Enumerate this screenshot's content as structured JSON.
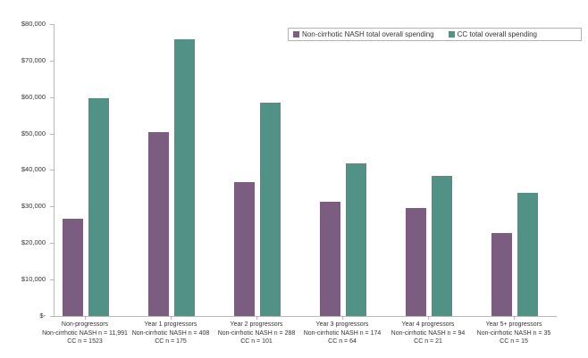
{
  "chart_data": {
    "type": "bar",
    "title": "",
    "xlabel": "",
    "ylabel": "",
    "ylim": [
      0,
      80000
    ],
    "grid": false,
    "legend_position": "top-right",
    "y_ticks": [
      {
        "value": 0,
        "label": "$-"
      },
      {
        "value": 10000,
        "label": "$10,000"
      },
      {
        "value": 20000,
        "label": "$20,000"
      },
      {
        "value": 30000,
        "label": "$30,000"
      },
      {
        "value": 40000,
        "label": "$40,000"
      },
      {
        "value": 50000,
        "label": "$50,000"
      },
      {
        "value": 60000,
        "label": "$60,000"
      },
      {
        "value": 70000,
        "label": "$70,000"
      },
      {
        "value": 80000,
        "label": "$80,000"
      }
    ],
    "categories": [
      {
        "name": "Non-progressors",
        "nash_n": "Non-cirrhotic NASH n = 11,991",
        "cc_n": "CC n = 1523"
      },
      {
        "name": "Year 1 progressors",
        "nash_n": "Non-cirrhotic NASH n = 408",
        "cc_n": "CC n = 175"
      },
      {
        "name": "Year 2 progressors",
        "nash_n": "Non-cirrhotic NASH n = 288",
        "cc_n": "CC n = 101"
      },
      {
        "name": "Year 3 progressors",
        "nash_n": "Non-cirrhotic NASH n = 174",
        "cc_n": "CC n = 64"
      },
      {
        "name": "Year 4 progressors",
        "nash_n": "Non-cirrhotic NASH n = 94",
        "cc_n": "CC n = 21"
      },
      {
        "name": "Year 5+ progressors",
        "nash_n": "Non-cirrhotic NASH n = 35",
        "cc_n": "CC n = 15"
      }
    ],
    "series": [
      {
        "name": "Non-cirrhotic NASH total overall spending",
        "color": "#7b5e7f",
        "values": [
          26700,
          50400,
          36700,
          31300,
          29600,
          22700
        ]
      },
      {
        "name": "CC total overall spending",
        "color": "#529186",
        "values": [
          59700,
          75800,
          58400,
          41800,
          38400,
          33800
        ]
      }
    ]
  },
  "colors": {
    "axis": "#b8b8b8",
    "text": "#333333",
    "legend_border": "#b3b3b3",
    "background": "#ffffff"
  }
}
